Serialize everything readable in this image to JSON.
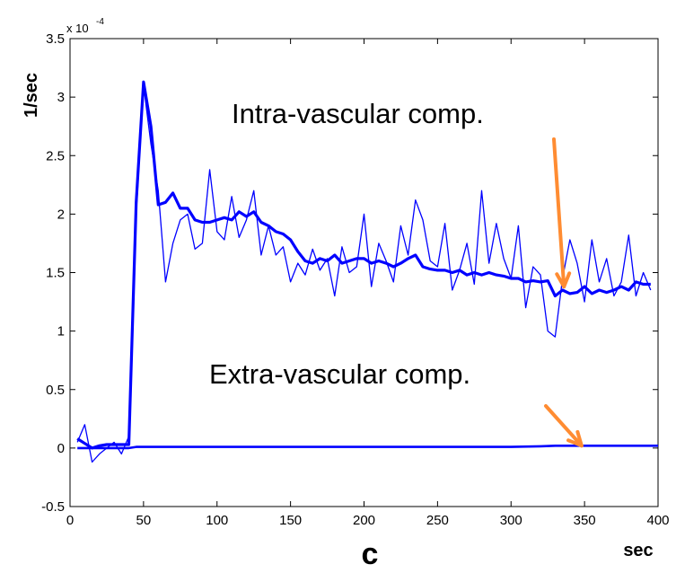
{
  "chart_data": {
    "type": "line",
    "title": "",
    "xlabel": "sec",
    "ylabel": "1/sec",
    "y_exponent_base": "x 10",
    "y_exponent_power": "-4",
    "panel_label": "c",
    "xlim": [
      0,
      400
    ],
    "ylim": [
      -0.5,
      3.5
    ],
    "xticks": [
      0,
      50,
      100,
      150,
      200,
      250,
      300,
      350,
      400
    ],
    "yticks": [
      -0.5,
      0,
      0.5,
      1,
      1.5,
      2,
      2.5,
      3,
      3.5
    ],
    "xtick_labels": [
      "0",
      "50",
      "100",
      "150",
      "200",
      "250",
      "300",
      "350",
      "400"
    ],
    "ytick_labels": [
      "-0.5",
      "0",
      "0.5",
      "1",
      "1.5",
      "2",
      "2.5",
      "3",
      "3.5"
    ],
    "grid": false,
    "line_color": "#0000ff",
    "arrow_color": "#ff8c32",
    "annotations": [
      {
        "text": "Intra-vascular comp.",
        "points_to": [
          336,
          1.38
        ]
      },
      {
        "text": "Extra-vascular comp.",
        "points_to": [
          348,
          0.02
        ]
      }
    ],
    "series": [
      {
        "role": "raw",
        "x": [
          5,
          10,
          15,
          20,
          25,
          30,
          35,
          40,
          45,
          50,
          55,
          60,
          65,
          70,
          75,
          80,
          85,
          90,
          95,
          100,
          105,
          110,
          115,
          120,
          125,
          130,
          135,
          140,
          145,
          150,
          155,
          160,
          165,
          170,
          175,
          180,
          185,
          190,
          195,
          200,
          205,
          210,
          215,
          220,
          225,
          230,
          235,
          240,
          245,
          250,
          255,
          260,
          265,
          270,
          275,
          280,
          285,
          290,
          295,
          300,
          305,
          310,
          315,
          320,
          325,
          330,
          335,
          340,
          345,
          350,
          355,
          360,
          365,
          370,
          375,
          380,
          385,
          390,
          395
        ],
        "y": [
          0.05,
          0.2,
          -0.12,
          -0.05,
          0.0,
          0.05,
          -0.05,
          0.1,
          2.0,
          3.1,
          2.6,
          2.2,
          1.42,
          1.75,
          1.95,
          2.0,
          1.7,
          1.75,
          2.38,
          1.85,
          1.78,
          2.15,
          1.8,
          1.95,
          2.2,
          1.65,
          1.9,
          1.65,
          1.72,
          1.42,
          1.58,
          1.48,
          1.7,
          1.52,
          1.62,
          1.3,
          1.72,
          1.5,
          1.55,
          2.0,
          1.38,
          1.75,
          1.6,
          1.42,
          1.9,
          1.65,
          2.12,
          1.95,
          1.6,
          1.55,
          1.92,
          1.35,
          1.52,
          1.75,
          1.4,
          2.2,
          1.58,
          1.92,
          1.62,
          1.45,
          1.9,
          1.2,
          1.55,
          1.48,
          1.0,
          0.95,
          1.45,
          1.78,
          1.58,
          1.25,
          1.78,
          1.42,
          1.62,
          1.3,
          1.42,
          1.82,
          1.3,
          1.5,
          1.35
        ]
      },
      {
        "role": "intra-vascular fit",
        "x": [
          5,
          10,
          15,
          20,
          25,
          30,
          35,
          40,
          45,
          50,
          55,
          60,
          65,
          70,
          75,
          80,
          85,
          90,
          95,
          100,
          105,
          110,
          115,
          120,
          125,
          130,
          135,
          140,
          145,
          150,
          155,
          160,
          165,
          170,
          175,
          180,
          185,
          190,
          195,
          200,
          205,
          210,
          215,
          220,
          225,
          230,
          235,
          240,
          245,
          250,
          255,
          260,
          265,
          270,
          275,
          280,
          285,
          290,
          295,
          300,
          305,
          310,
          315,
          320,
          325,
          330,
          335,
          340,
          345,
          350,
          355,
          360,
          365,
          370,
          375,
          380,
          385,
          390,
          395
        ],
        "y": [
          0.08,
          0.04,
          0.0,
          0.02,
          0.03,
          0.03,
          0.03,
          0.03,
          2.1,
          3.13,
          2.75,
          2.08,
          2.1,
          2.18,
          2.05,
          2.05,
          1.95,
          1.93,
          1.93,
          1.95,
          1.97,
          1.95,
          2.02,
          1.98,
          2.02,
          1.93,
          1.9,
          1.85,
          1.83,
          1.78,
          1.68,
          1.6,
          1.58,
          1.62,
          1.6,
          1.65,
          1.58,
          1.6,
          1.62,
          1.62,
          1.58,
          1.6,
          1.58,
          1.55,
          1.58,
          1.62,
          1.65,
          1.55,
          1.53,
          1.52,
          1.52,
          1.5,
          1.52,
          1.48,
          1.5,
          1.48,
          1.5,
          1.48,
          1.47,
          1.45,
          1.45,
          1.42,
          1.43,
          1.42,
          1.43,
          1.3,
          1.35,
          1.32,
          1.33,
          1.38,
          1.32,
          1.35,
          1.33,
          1.35,
          1.38,
          1.35,
          1.42,
          1.4,
          1.4
        ]
      },
      {
        "role": "extra-vascular fit",
        "x": [
          5,
          40,
          45,
          100,
          200,
          300,
          320,
          330,
          400
        ],
        "y": [
          0.0,
          0.0,
          0.01,
          0.01,
          0.01,
          0.01,
          0.015,
          0.02,
          0.02
        ]
      }
    ]
  }
}
